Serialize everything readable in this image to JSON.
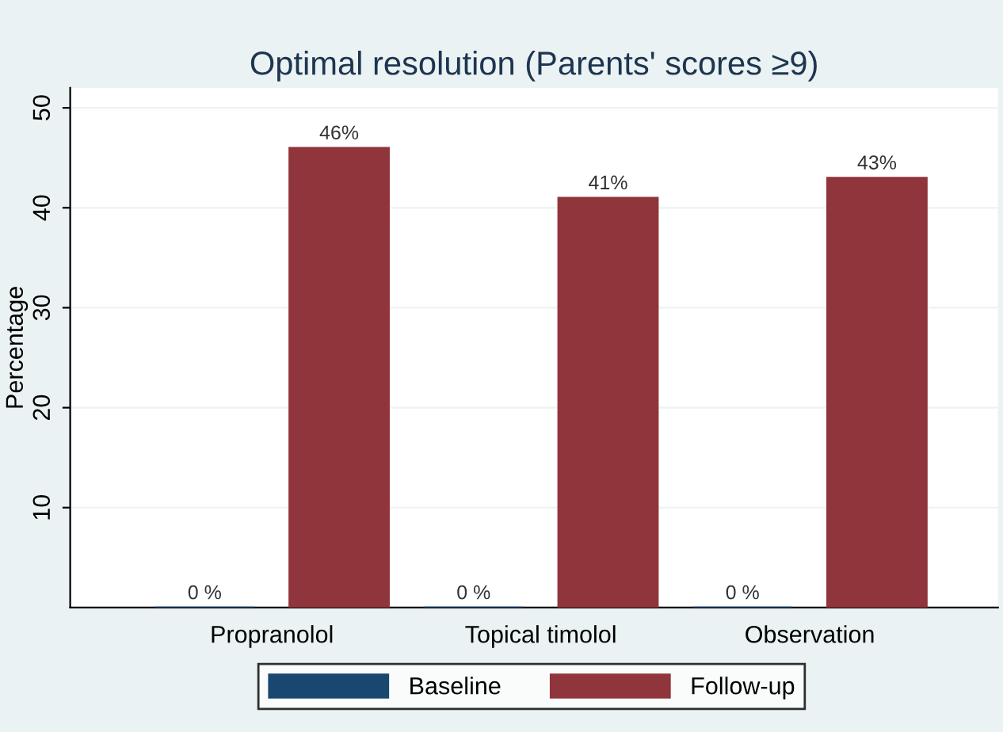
{
  "chart_data": {
    "type": "bar",
    "title": "Optimal resolution (Parents' scores ≥9)",
    "ylabel": "Percentage",
    "categories": [
      "Propranolol",
      "Topical timolol",
      "Observation"
    ],
    "series": [
      {
        "name": "Baseline",
        "color": "#1a476f",
        "values": [
          0,
          0,
          0
        ],
        "value_labels": [
          "0 %",
          "0 %",
          "0 %"
        ]
      },
      {
        "name": "Follow-up",
        "color": "#90353b",
        "values": [
          46,
          41,
          43
        ],
        "value_labels": [
          "46%",
          "41%",
          "43%"
        ]
      }
    ],
    "ylim": [
      0,
      52
    ],
    "yticks": [
      10,
      20,
      30,
      40,
      50
    ],
    "grid": "y",
    "legend": "bottom"
  }
}
